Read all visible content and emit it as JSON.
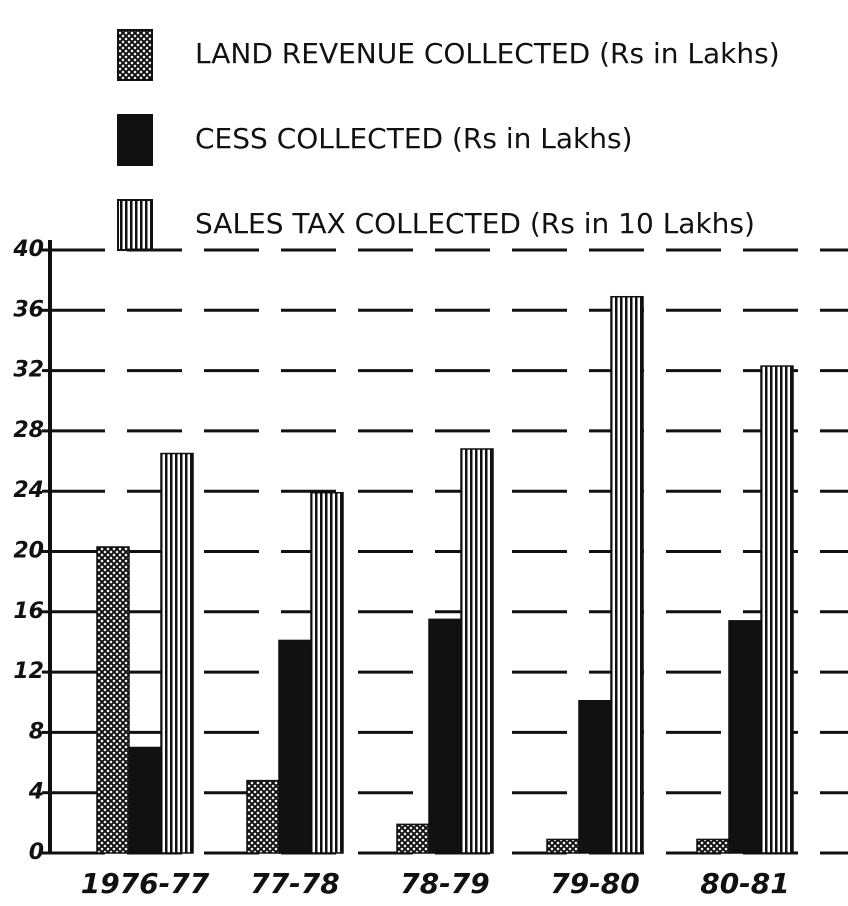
{
  "chart_data": {
    "type": "bar",
    "categories": [
      "1976-77",
      "77-78",
      "78-79",
      "79-80",
      "80-81"
    ],
    "series": [
      {
        "name": "LAND REVENUE COLLECTED (Rs in Lakhs)",
        "color": "#111111",
        "pattern": "crosshatch",
        "values": [
          20.3,
          4.8,
          1.9,
          0.9,
          0.9
        ]
      },
      {
        "name": "CESS COLLECTED (Rs in Lakhs)",
        "color": "#111111",
        "pattern": "solid",
        "values": [
          7.0,
          14.1,
          15.5,
          10.1,
          15.4
        ]
      },
      {
        "name": "SALES TAX COLLECTED (Rs in 10 Lakhs)",
        "color": "#111111",
        "pattern": "vertical-stripes",
        "values": [
          26.5,
          23.9,
          26.8,
          36.9,
          32.3
        ]
      }
    ],
    "ylim": [
      0,
      40
    ],
    "yticks": [
      0,
      4,
      8,
      12,
      16,
      20,
      24,
      28,
      32,
      36,
      40
    ],
    "grid": true
  }
}
